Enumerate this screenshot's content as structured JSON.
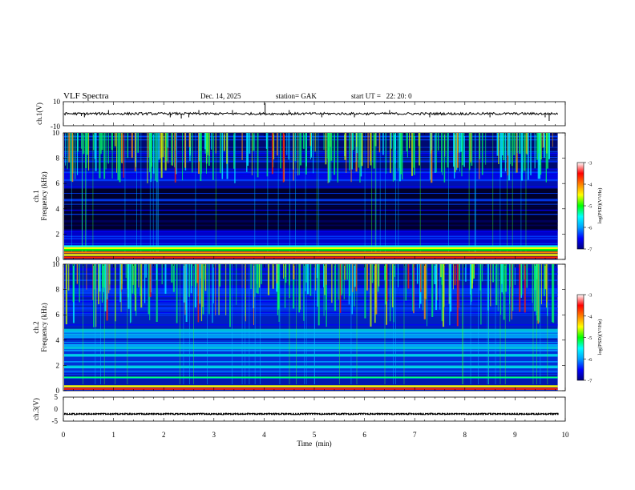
{
  "header": {
    "title": "VLF Spectra",
    "date": "Dec. 14, 2025",
    "station": "station= GAK",
    "start_ut": "start UT =   22: 20: 0"
  },
  "chart_data": [
    {
      "type": "line",
      "panel": "ch1-waveform",
      "ylabel": "ch.1(V)",
      "ylim": [
        -10,
        10
      ],
      "y_tick_labels": [
        "10",
        "-10"
      ],
      "xlim": [
        0,
        10
      ],
      "baseline_value": 0,
      "noise_amplitude": 1,
      "spikes": [
        {
          "x": 0.36,
          "y": -2
        },
        {
          "x": 0.42,
          "y": -3
        },
        {
          "x": 0.9,
          "y": 3
        },
        {
          "x": 2.13,
          "y": -3
        },
        {
          "x": 2.35,
          "y": -4
        },
        {
          "x": 2.5,
          "y": -3
        },
        {
          "x": 2.7,
          "y": 3
        },
        {
          "x": 3.37,
          "y": 3
        },
        {
          "x": 4.02,
          "y": 9
        },
        {
          "x": 4.5,
          "y": 3
        },
        {
          "x": 5.15,
          "y": -3
        },
        {
          "x": 5.8,
          "y": -3
        },
        {
          "x": 6.5,
          "y": 3
        },
        {
          "x": 7.3,
          "y": -3
        },
        {
          "x": 8.5,
          "y": -3
        },
        {
          "x": 9.6,
          "y": -3
        },
        {
          "x": 9.68,
          "y": -6
        }
      ]
    },
    {
      "type": "heatmap",
      "panel": "ch1-spectrogram",
      "ylabel": "ch.1",
      "ylabel2": "Frequency (kHz)",
      "ylim": [
        0,
        10
      ],
      "y_ticks": [
        "0",
        "2",
        "4",
        "6",
        "8",
        "10"
      ],
      "xlim": [
        0,
        9.85
      ],
      "colorbar": {
        "label": "log(PSD)(V²/Hz)",
        "range": [
          -7,
          -3
        ],
        "ticks": [
          "-3",
          "-4",
          "-5",
          "-6",
          "-7"
        ]
      },
      "strong_lines_khz": [
        0.15,
        0.35,
        0.55,
        0.75,
        0.9
      ],
      "quiet_band_khz": [
        2,
        6
      ]
    },
    {
      "type": "heatmap",
      "panel": "ch2-spectrogram",
      "ylabel": "ch.2",
      "ylabel2": "Frequency (kHz)",
      "ylim": [
        0,
        10
      ],
      "y_ticks": [
        "0",
        "2",
        "4",
        "6",
        "8",
        "10"
      ],
      "xlim": [
        0,
        9.85
      ],
      "colorbar": {
        "label": "log(PSD)(V²/Hz)",
        "range": [
          -7,
          -3
        ],
        "ticks": [
          "-3",
          "-4",
          "-5",
          "-6",
          "-7"
        ]
      },
      "strong_lines_khz": [
        0.15,
        0.35
      ],
      "bright_bands_khz": [
        1.9,
        2.8,
        3.4,
        4.8
      ]
    },
    {
      "type": "line",
      "panel": "ch3-waveform",
      "ylabel": "ch.3(V)",
      "ylim": [
        -5,
        5
      ],
      "y_ticks": [
        "5",
        "0",
        "-5"
      ],
      "xlim": [
        0,
        10
      ],
      "baseline_value": -2
    }
  ],
  "xaxis": {
    "label": "Time  (min)",
    "ticks": [
      "0",
      "1",
      "2",
      "3",
      "4",
      "5",
      "6",
      "7",
      "8",
      "9",
      "10"
    ]
  },
  "colors": {
    "psd_scale": [
      "#000080",
      "#0000ff",
      "#00a0ff",
      "#00ffff",
      "#00ff00",
      "#ffff00",
      "#ff8000",
      "#ff0000",
      "#ffffff"
    ]
  }
}
